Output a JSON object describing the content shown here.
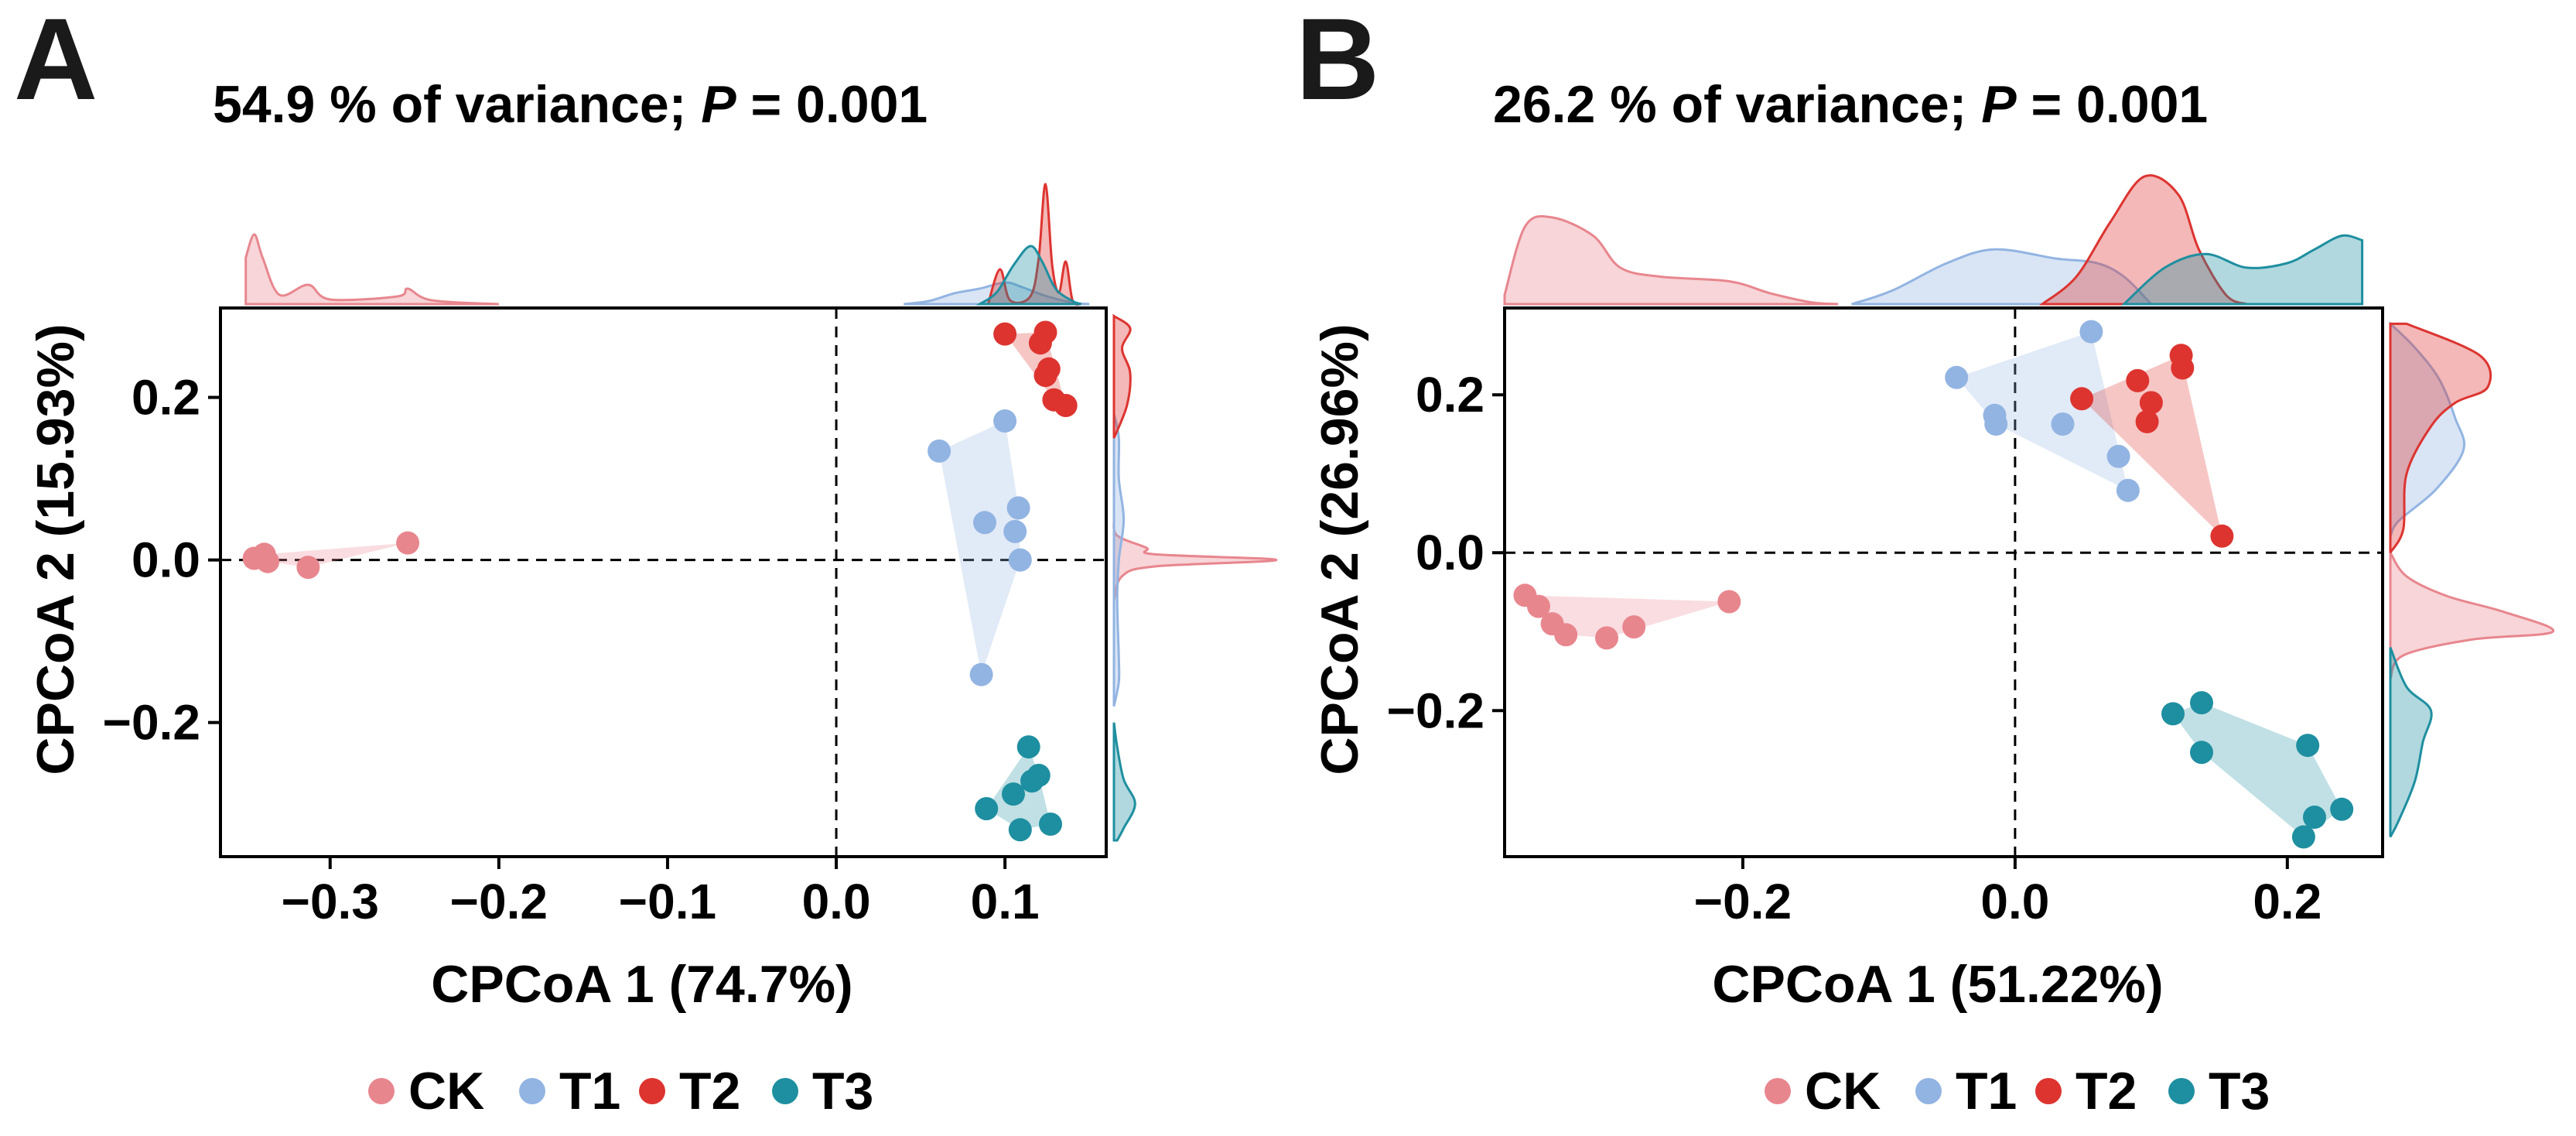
{
  "colors": {
    "CK": "#e8868e",
    "T1": "#92b4e2",
    "T2": "#dd3430",
    "T3": "#1e8fa0"
  },
  "chart_data": [
    {
      "type": "scatter",
      "panel_label": "A",
      "title_text": "54.9 % of variance; ",
      "title_p": "P",
      "title_value": " = 0.001",
      "xlabel": "CPCoA 1 (74.7%)",
      "ylabel": "CPCoA 2 (15.93%)",
      "xlim": [
        -0.365,
        0.16
      ],
      "ylim": [
        -0.365,
        0.31
      ],
      "xticks": [
        {
          "v": -0.3,
          "label": "−0.3"
        },
        {
          "v": -0.2,
          "label": "−0.2"
        },
        {
          "v": -0.1,
          "label": "−0.1"
        },
        {
          "v": 0.0,
          "label": "0.0"
        },
        {
          "v": 0.1,
          "label": "0.1"
        }
      ],
      "yticks": [
        {
          "v": 0.2,
          "label": "0.2"
        },
        {
          "v": 0.0,
          "label": "0.0"
        },
        {
          "v": -0.2,
          "label": "−0.2"
        }
      ],
      "series": [
        {
          "name": "CK",
          "points": [
            [
              -0.345,
              0.002
            ],
            [
              -0.339,
              0.007
            ],
            [
              -0.337,
              -0.002
            ],
            [
              -0.313,
              -0.009
            ],
            [
              -0.254,
              0.021
            ]
          ]
        },
        {
          "name": "T1",
          "points": [
            [
              0.061,
              0.134
            ],
            [
              0.1,
              0.171
            ],
            [
              0.108,
              0.064
            ],
            [
              0.088,
              0.046
            ],
            [
              0.106,
              0.035
            ],
            [
              0.109,
              0.0
            ],
            [
              0.086,
              -0.141
            ]
          ]
        },
        {
          "name": "T2",
          "points": [
            [
              0.1,
              0.278
            ],
            [
              0.124,
              0.28
            ],
            [
              0.121,
              0.267
            ],
            [
              0.126,
              0.235
            ],
            [
              0.124,
              0.227
            ],
            [
              0.129,
              0.197
            ],
            [
              0.136,
              0.19
            ]
          ]
        },
        {
          "name": "T3",
          "points": [
            [
              0.114,
              -0.23
            ],
            [
              0.12,
              -0.265
            ],
            [
              0.116,
              -0.272
            ],
            [
              0.105,
              -0.288
            ],
            [
              0.089,
              -0.306
            ],
            [
              0.109,
              -0.332
            ],
            [
              0.127,
              -0.325
            ]
          ]
        }
      ],
      "density_x": {
        "CK": [
          [
            -0.35,
            0.6
          ],
          [
            -0.345,
            0.9
          ],
          [
            -0.34,
            0.6
          ],
          [
            -0.33,
            0.12
          ],
          [
            -0.313,
            0.25
          ],
          [
            -0.3,
            0.06
          ],
          [
            -0.26,
            0.1
          ],
          [
            -0.254,
            0.2
          ],
          [
            -0.24,
            0.05
          ],
          [
            -0.2,
            0.0
          ]
        ],
        "T1": [
          [
            0.04,
            0.0
          ],
          [
            0.055,
            0.04
          ],
          [
            0.07,
            0.14
          ],
          [
            0.085,
            0.2
          ],
          [
            0.1,
            0.28
          ],
          [
            0.11,
            0.22
          ],
          [
            0.125,
            0.1
          ],
          [
            0.14,
            0.02
          ],
          [
            0.15,
            0.0
          ]
        ],
        "T2": [
          [
            0.09,
            0.0
          ],
          [
            0.097,
            0.45
          ],
          [
            0.103,
            0.05
          ],
          [
            0.115,
            0.1
          ],
          [
            0.12,
            0.6
          ],
          [
            0.124,
            1.55
          ],
          [
            0.128,
            0.5
          ],
          [
            0.132,
            0.15
          ],
          [
            0.136,
            0.55
          ],
          [
            0.14,
            0.05
          ],
          [
            0.145,
            0.0
          ]
        ],
        "T3": [
          [
            0.085,
            0.0
          ],
          [
            0.095,
            0.15
          ],
          [
            0.105,
            0.5
          ],
          [
            0.115,
            0.75
          ],
          [
            0.122,
            0.55
          ],
          [
            0.13,
            0.2
          ],
          [
            0.14,
            0.04
          ],
          [
            0.145,
            0.0
          ]
        ]
      },
      "density_y": {
        "CK": [
          [
            -0.05,
            0.0
          ],
          [
            -0.02,
            0.05
          ],
          [
            -0.008,
            0.25
          ],
          [
            0.0,
            1.0
          ],
          [
            0.007,
            0.25
          ],
          [
            0.015,
            0.2
          ],
          [
            0.03,
            0.02
          ],
          [
            0.05,
            0.0
          ]
        ],
        "T1": [
          [
            -0.18,
            0.0
          ],
          [
            -0.15,
            0.03
          ],
          [
            -0.12,
            0.03
          ],
          [
            -0.05,
            0.02
          ],
          [
            0.0,
            0.03
          ],
          [
            0.05,
            0.06
          ],
          [
            0.1,
            0.03
          ],
          [
            0.15,
            0.03
          ],
          [
            0.18,
            0.0
          ]
        ],
        "T2": [
          [
            0.15,
            0.0
          ],
          [
            0.19,
            0.08
          ],
          [
            0.23,
            0.1
          ],
          [
            0.26,
            0.05
          ],
          [
            0.285,
            0.1
          ],
          [
            0.3,
            0.0
          ]
        ],
        "T3": [
          [
            -0.2,
            0.0
          ],
          [
            -0.23,
            0.02
          ],
          [
            -0.27,
            0.06
          ],
          [
            -0.3,
            0.13
          ],
          [
            -0.33,
            0.06
          ],
          [
            -0.345,
            0.02
          ]
        ]
      }
    },
    {
      "type": "scatter",
      "panel_label": "B",
      "title_text": "26.2 % of variance; ",
      "title_p": "P",
      "title_value": " = 0.001",
      "xlabel": "CPCoA 1 (51.22%)",
      "ylabel": "CPCoA 2 (26.96%)",
      "xlim": [
        -0.375,
        0.27
      ],
      "ylim": [
        -0.385,
        0.31
      ],
      "xticks": [
        {
          "v": -0.2,
          "label": "−0.2"
        },
        {
          "v": 0.0,
          "label": "0.0"
        },
        {
          "v": 0.2,
          "label": "0.2"
        }
      ],
      "yticks": [
        {
          "v": 0.2,
          "label": "0.2"
        },
        {
          "v": 0.0,
          "label": "0.0"
        },
        {
          "v": -0.2,
          "label": "−0.2"
        }
      ],
      "series": [
        {
          "name": "CK",
          "points": [
            [
              -0.36,
              -0.054
            ],
            [
              -0.35,
              -0.068
            ],
            [
              -0.34,
              -0.09
            ],
            [
              -0.33,
              -0.104
            ],
            [
              -0.3,
              -0.108
            ],
            [
              -0.28,
              -0.094
            ],
            [
              -0.21,
              -0.062
            ]
          ]
        },
        {
          "name": "T1",
          "points": [
            [
              -0.043,
              0.222
            ],
            [
              0.056,
              0.28
            ],
            [
              -0.015,
              0.174
            ],
            [
              -0.014,
              0.163
            ],
            [
              0.035,
              0.163
            ],
            [
              0.076,
              0.122
            ],
            [
              0.083,
              0.079
            ]
          ]
        },
        {
          "name": "T2",
          "points": [
            [
              0.049,
              0.195
            ],
            [
              0.09,
              0.218
            ],
            [
              0.1,
              0.19
            ],
            [
              0.097,
              0.166
            ],
            [
              0.122,
              0.25
            ],
            [
              0.123,
              0.234
            ],
            [
              0.152,
              0.021
            ]
          ]
        },
        {
          "name": "T3",
          "points": [
            [
              0.137,
              -0.19
            ],
            [
              0.137,
              -0.253
            ],
            [
              0.116,
              -0.204
            ],
            [
              0.215,
              -0.244
            ],
            [
              0.24,
              -0.325
            ],
            [
              0.22,
              -0.335
            ],
            [
              0.212,
              -0.36
            ]
          ]
        }
      ],
      "density_x": {
        "CK": [
          [
            -0.375,
            0.1
          ],
          [
            -0.36,
            0.85
          ],
          [
            -0.34,
            0.95
          ],
          [
            -0.31,
            0.75
          ],
          [
            -0.29,
            0.4
          ],
          [
            -0.26,
            0.3
          ],
          [
            -0.21,
            0.25
          ],
          [
            -0.18,
            0.12
          ],
          [
            -0.15,
            0.02
          ],
          [
            -0.13,
            0.0
          ]
        ],
        "T1": [
          [
            -0.12,
            0.0
          ],
          [
            -0.09,
            0.15
          ],
          [
            -0.05,
            0.45
          ],
          [
            -0.015,
            0.6
          ],
          [
            0.03,
            0.5
          ],
          [
            0.06,
            0.45
          ],
          [
            0.08,
            0.3
          ],
          [
            0.1,
            0.0
          ]
        ],
        "T2": [
          [
            0.02,
            0.0
          ],
          [
            0.045,
            0.3
          ],
          [
            0.07,
            0.9
          ],
          [
            0.095,
            1.4
          ],
          [
            0.12,
            1.2
          ],
          [
            0.135,
            0.6
          ],
          [
            0.155,
            0.1
          ],
          [
            0.17,
            0.0
          ]
        ],
        "T3": [
          [
            0.08,
            0.0
          ],
          [
            0.11,
            0.4
          ],
          [
            0.14,
            0.55
          ],
          [
            0.17,
            0.4
          ],
          [
            0.2,
            0.45
          ],
          [
            0.22,
            0.6
          ],
          [
            0.24,
            0.75
          ],
          [
            0.255,
            0.7
          ]
        ]
      },
      "density_y": {
        "CK": [
          [
            0.0,
            0.0
          ],
          [
            -0.03,
            0.1
          ],
          [
            -0.055,
            0.35
          ],
          [
            -0.075,
            0.7
          ],
          [
            -0.1,
            1.0
          ],
          [
            -0.11,
            0.5
          ],
          [
            -0.13,
            0.08
          ],
          [
            -0.16,
            0.0
          ]
        ],
        "T1": [
          [
            0.29,
            0.0
          ],
          [
            0.26,
            0.15
          ],
          [
            0.22,
            0.3
          ],
          [
            0.17,
            0.4
          ],
          [
            0.13,
            0.45
          ],
          [
            0.08,
            0.28
          ],
          [
            0.04,
            0.05
          ],
          [
            0.02,
            0.0
          ]
        ],
        "T2": [
          [
            0.29,
            0.1
          ],
          [
            0.25,
            0.55
          ],
          [
            0.21,
            0.6
          ],
          [
            0.19,
            0.4
          ],
          [
            0.16,
            0.25
          ],
          [
            0.1,
            0.1
          ],
          [
            0.03,
            0.08
          ],
          [
            0.0,
            0.0
          ]
        ],
        "T3": [
          [
            -0.12,
            0.0
          ],
          [
            -0.17,
            0.1
          ],
          [
            -0.2,
            0.25
          ],
          [
            -0.24,
            0.2
          ],
          [
            -0.29,
            0.15
          ],
          [
            -0.34,
            0.05
          ],
          [
            -0.36,
            0.0
          ]
        ]
      }
    }
  ],
  "legends": [
    {
      "items": [
        "CK",
        "T1",
        "T2",
        "T3"
      ]
    },
    {
      "items": [
        "CK",
        "T1",
        "T2",
        "T3"
      ]
    }
  ]
}
